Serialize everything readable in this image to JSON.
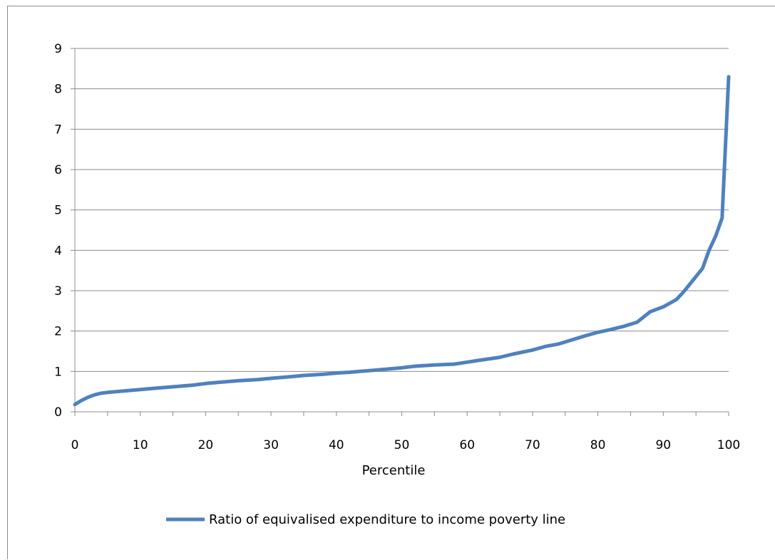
{
  "chart_data": {
    "type": "line",
    "title": "",
    "xlabel": "Percentile",
    "ylabel": "",
    "xlim": [
      0,
      100
    ],
    "ylim": [
      0,
      9
    ],
    "x_ticks": [
      "0",
      "10",
      "20",
      "30",
      "40",
      "50",
      "60",
      "70",
      "80",
      "90",
      "100"
    ],
    "y_ticks": [
      "0",
      "1",
      "2",
      "3",
      "4",
      "5",
      "6",
      "7",
      "8",
      "9"
    ],
    "grid": "horizontal",
    "legend_position": "bottom",
    "series": [
      {
        "name": "Ratio of equivalised expenditure to income poverty line",
        "color": "#4f81bd",
        "x": [
          0,
          1,
          2,
          3,
          4,
          5,
          7,
          10,
          12,
          15,
          18,
          20,
          22,
          25,
          28,
          30,
          33,
          35,
          38,
          40,
          42,
          45,
          48,
          50,
          52,
          55,
          58,
          60,
          62,
          65,
          67,
          70,
          72,
          74,
          76,
          78,
          80,
          82,
          84,
          86,
          88,
          90,
          92,
          93,
          94,
          95,
          96,
          97,
          98,
          99,
          100
        ],
        "y": [
          0.18,
          0.28,
          0.36,
          0.42,
          0.46,
          0.48,
          0.51,
          0.55,
          0.58,
          0.62,
          0.66,
          0.7,
          0.73,
          0.77,
          0.8,
          0.83,
          0.87,
          0.9,
          0.93,
          0.96,
          0.98,
          1.02,
          1.06,
          1.09,
          1.13,
          1.16,
          1.18,
          1.23,
          1.28,
          1.35,
          1.43,
          1.53,
          1.62,
          1.68,
          1.78,
          1.88,
          1.97,
          2.04,
          2.12,
          2.22,
          2.48,
          2.6,
          2.78,
          2.95,
          3.15,
          3.35,
          3.55,
          4.0,
          4.35,
          4.8,
          8.3
        ]
      }
    ]
  }
}
